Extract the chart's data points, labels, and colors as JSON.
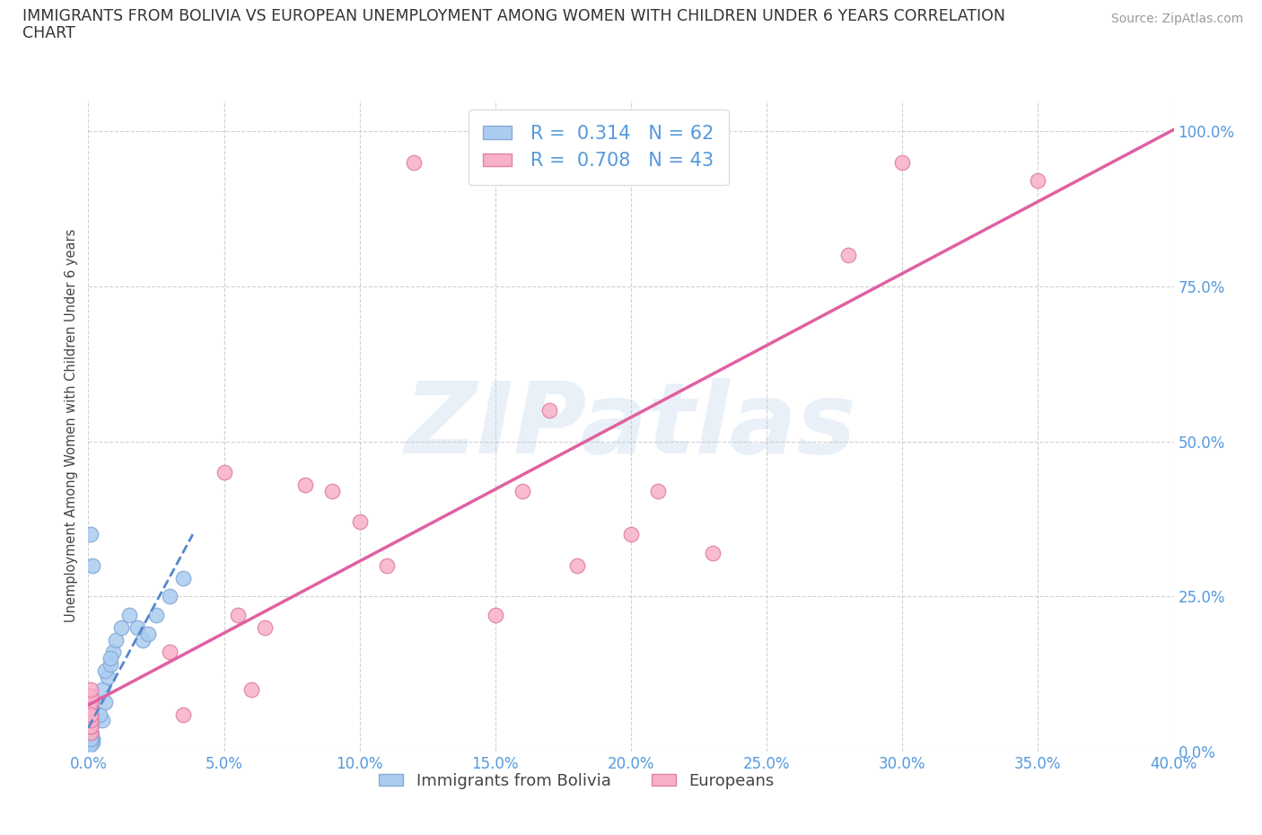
{
  "title_line1": "IMMIGRANTS FROM BOLIVIA VS EUROPEAN UNEMPLOYMENT AMONG WOMEN WITH CHILDREN UNDER 6 YEARS CORRELATION",
  "title_line2": "CHART",
  "source": "Source: ZipAtlas.com",
  "ylabel": "Unemployment Among Women with Children Under 6 years",
  "xlim": [
    0.0,
    0.4
  ],
  "ylim": [
    0.0,
    1.05
  ],
  "xticks": [
    0.0,
    0.05,
    0.1,
    0.15,
    0.2,
    0.25,
    0.3,
    0.35,
    0.4
  ],
  "yticks": [
    0.0,
    0.25,
    0.5,
    0.75,
    1.0
  ],
  "grid_color": "#cccccc",
  "bg_color": "#ffffff",
  "watermark": "ZIPatlas",
  "watermark_color": "#b0cce8",
  "axis_label_color": "#5599dd",
  "title_color": "#333333",
  "bolivia": {
    "name": "Immigrants from Bolivia",
    "R": 0.314,
    "N": 62,
    "face_color": "#aaccf0",
    "edge_color": "#88aad8",
    "trend_color": "#5588cc",
    "trend_style": "--",
    "x": [
      0.0005,
      0.001,
      0.0008,
      0.001,
      0.0015,
      0.001,
      0.001,
      0.0008,
      0.001,
      0.0012,
      0.0005,
      0.001,
      0.0015,
      0.001,
      0.001,
      0.0008,
      0.0006,
      0.001,
      0.001,
      0.0012,
      0.0005,
      0.001,
      0.0015,
      0.001,
      0.001,
      0.0008,
      0.0006,
      0.001,
      0.0012,
      0.001,
      0.0008,
      0.001,
      0.0005,
      0.001,
      0.0015,
      0.001,
      0.0008,
      0.001,
      0.001,
      0.0012,
      0.001,
      0.001,
      0.0005,
      0.001,
      0.005,
      0.004,
      0.006,
      0.005,
      0.007,
      0.006,
      0.008,
      0.009,
      0.01,
      0.012,
      0.008,
      0.015,
      0.018,
      0.02,
      0.022,
      0.025,
      0.03,
      0.035
    ],
    "y": [
      0.03,
      0.04,
      0.05,
      0.03,
      0.02,
      0.03,
      0.04,
      0.02,
      0.03,
      0.02,
      0.015,
      0.04,
      0.05,
      0.03,
      0.02,
      0.02,
      0.03,
      0.02,
      0.04,
      0.06,
      0.015,
      0.02,
      0.015,
      0.02,
      0.03,
      0.02,
      0.03,
      0.04,
      0.02,
      0.03,
      0.015,
      0.02,
      0.03,
      0.35,
      0.3,
      0.02,
      0.03,
      0.02,
      0.04,
      0.02,
      0.03,
      0.02,
      0.01,
      0.02,
      0.05,
      0.06,
      0.08,
      0.1,
      0.12,
      0.13,
      0.14,
      0.16,
      0.18,
      0.2,
      0.15,
      0.22,
      0.2,
      0.18,
      0.19,
      0.22,
      0.25,
      0.28
    ]
  },
  "europeans": {
    "name": "Europeans",
    "R": 0.708,
    "N": 43,
    "face_color": "#f8b0c8",
    "edge_color": "#e080a8",
    "trend_color": "#e060a0",
    "trend_style": "-",
    "x": [
      0.001,
      0.001,
      0.001,
      0.001,
      0.001,
      0.001,
      0.001,
      0.001,
      0.001,
      0.001,
      0.001,
      0.001,
      0.001,
      0.001,
      0.001,
      0.001,
      0.001,
      0.001,
      0.001,
      0.001,
      0.001,
      0.001,
      0.03,
      0.035,
      0.05,
      0.055,
      0.06,
      0.065,
      0.08,
      0.09,
      0.1,
      0.11,
      0.12,
      0.15,
      0.16,
      0.17,
      0.18,
      0.2,
      0.21,
      0.23,
      0.28,
      0.3,
      0.35
    ],
    "y": [
      0.05,
      0.03,
      0.06,
      0.08,
      0.04,
      0.07,
      0.05,
      0.06,
      0.09,
      0.04,
      0.06,
      0.08,
      0.07,
      0.05,
      0.04,
      0.06,
      0.05,
      0.07,
      0.08,
      0.09,
      0.1,
      0.06,
      0.16,
      0.06,
      0.45,
      0.22,
      0.1,
      0.2,
      0.43,
      0.42,
      0.37,
      0.3,
      0.95,
      0.22,
      0.42,
      0.55,
      0.3,
      0.35,
      0.42,
      0.32,
      0.8,
      0.95,
      0.92
    ]
  }
}
